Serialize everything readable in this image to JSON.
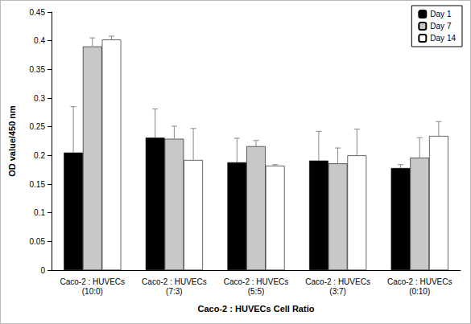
{
  "chart_data": {
    "type": "bar",
    "x_label": "Caco-2 : HUVECs Cell Ratio",
    "y_label": "OD value/450 nm",
    "categories": [
      "Caco-2 : HUVECs\n(10:0)",
      "Caco-2 : HUVECs\n(7:3)",
      "Caco-2 : HUVECs\n(5:5)",
      "Caco-2 : HUVECs\n(3:7)",
      "Caco-2 : HUVECs\n(0:10)"
    ],
    "series": [
      {
        "name": "Day 1",
        "color": "#000000",
        "values": [
          0.205,
          0.231,
          0.188,
          0.191,
          0.178
        ],
        "errors": [
          0.08,
          0.05,
          0.042,
          0.051,
          0.006
        ]
      },
      {
        "name": "Day 7",
        "color": "#c8c8c8",
        "values": [
          0.39,
          0.229,
          0.216,
          0.186,
          0.196
        ],
        "errors": [
          0.015,
          0.022,
          0.01,
          0.027,
          0.035
        ]
      },
      {
        "name": "Day 14",
        "color": "#ffffff",
        "values": [
          0.402,
          0.192,
          0.182,
          0.2,
          0.234
        ],
        "errors": [
          0.006,
          0.055,
          0.002,
          0.046,
          0.025
        ]
      }
    ],
    "ylim": [
      0,
      0.45
    ],
    "yticks": [
      0,
      0.05,
      0.1,
      0.15,
      0.2,
      0.25,
      0.3,
      0.35,
      0.4,
      0.45
    ],
    "grid": false,
    "legend": "upper right"
  }
}
